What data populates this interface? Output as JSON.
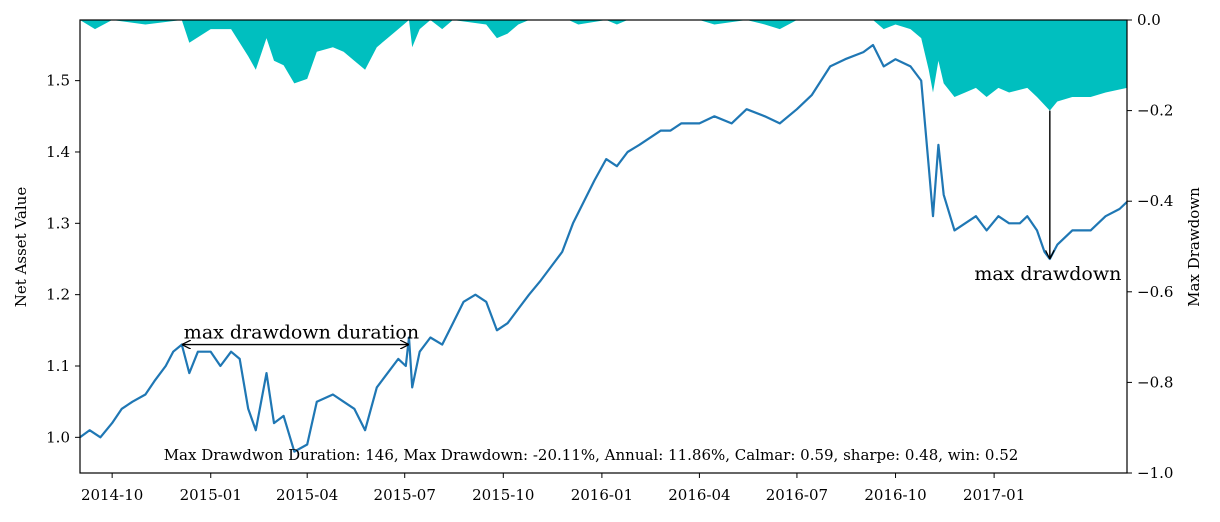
{
  "chart_data": {
    "type": "line",
    "ylabel_left": "Net Asset Value",
    "ylabel_right": "Max Drawdown",
    "ylim_left": [
      0.95,
      1.585
    ],
    "ylim_right": [
      -1.0,
      0.0
    ],
    "xlim": [
      "2014-09-01",
      "2017-05-05"
    ],
    "x_ticks": [
      "2014-10",
      "2015-01",
      "2015-04",
      "2015-07",
      "2015-10",
      "2016-01",
      "2016-04",
      "2016-07",
      "2016-10",
      "2017-01"
    ],
    "y_ticks_left": [
      "1.0",
      "1.1",
      "1.2",
      "1.3",
      "1.4",
      "1.5"
    ],
    "y_ticks_right": [
      "0.0",
      "−0.2",
      "−0.4",
      "−0.6",
      "−0.8",
      "−1.0"
    ],
    "grid": false,
    "series": [
      {
        "line_color": "#1f77b4",
        "points": [
          [
            "2014-09-01",
            1.0
          ],
          [
            "2014-09-10",
            1.01
          ],
          [
            "2014-09-20",
            1.0
          ],
          [
            "2014-10-01",
            1.02
          ],
          [
            "2014-10-10",
            1.04
          ],
          [
            "2014-10-20",
            1.05
          ],
          [
            "2014-11-01",
            1.06
          ],
          [
            "2014-11-10",
            1.08
          ],
          [
            "2014-11-20",
            1.1
          ],
          [
            "2014-11-27",
            1.12
          ],
          [
            "2014-12-05",
            1.13
          ],
          [
            "2014-12-12",
            1.09
          ],
          [
            "2014-12-20",
            1.12
          ],
          [
            "2015-01-01",
            1.12
          ],
          [
            "2015-01-10",
            1.1
          ],
          [
            "2015-01-20",
            1.12
          ],
          [
            "2015-01-28",
            1.11
          ],
          [
            "2015-02-05",
            1.04
          ],
          [
            "2015-02-12",
            1.01
          ],
          [
            "2015-02-22",
            1.09
          ],
          [
            "2015-03-01",
            1.02
          ],
          [
            "2015-03-10",
            1.03
          ],
          [
            "2015-03-20",
            0.98
          ],
          [
            "2015-04-01",
            0.99
          ],
          [
            "2015-04-10",
            1.05
          ],
          [
            "2015-04-25",
            1.06
          ],
          [
            "2015-05-05",
            1.05
          ],
          [
            "2015-05-15",
            1.04
          ],
          [
            "2015-05-25",
            1.01
          ],
          [
            "2015-06-05",
            1.07
          ],
          [
            "2015-06-15",
            1.09
          ],
          [
            "2015-06-25",
            1.11
          ],
          [
            "2015-07-02",
            1.1
          ],
          [
            "2015-07-05",
            1.14
          ],
          [
            "2015-07-08",
            1.07
          ],
          [
            "2015-07-15",
            1.12
          ],
          [
            "2015-07-25",
            1.14
          ],
          [
            "2015-08-05",
            1.13
          ],
          [
            "2015-08-15",
            1.16
          ],
          [
            "2015-08-25",
            1.19
          ],
          [
            "2015-09-05",
            1.2
          ],
          [
            "2015-09-15",
            1.19
          ],
          [
            "2015-09-25",
            1.15
          ],
          [
            "2015-10-05",
            1.16
          ],
          [
            "2015-10-15",
            1.18
          ],
          [
            "2015-10-25",
            1.2
          ],
          [
            "2015-11-05",
            1.22
          ],
          [
            "2015-11-15",
            1.24
          ],
          [
            "2015-11-25",
            1.26
          ],
          [
            "2015-12-05",
            1.3
          ],
          [
            "2015-12-15",
            1.33
          ],
          [
            "2015-12-25",
            1.36
          ],
          [
            "2016-01-05",
            1.39
          ],
          [
            "2016-01-15",
            1.38
          ],
          [
            "2016-01-25",
            1.4
          ],
          [
            "2016-02-05",
            1.41
          ],
          [
            "2016-02-15",
            1.42
          ],
          [
            "2016-02-25",
            1.43
          ],
          [
            "2016-03-05",
            1.43
          ],
          [
            "2016-03-15",
            1.44
          ],
          [
            "2016-04-01",
            1.44
          ],
          [
            "2016-04-15",
            1.45
          ],
          [
            "2016-05-01",
            1.44
          ],
          [
            "2016-05-15",
            1.46
          ],
          [
            "2016-06-01",
            1.45
          ],
          [
            "2016-06-15",
            1.44
          ],
          [
            "2016-07-01",
            1.46
          ],
          [
            "2016-07-15",
            1.48
          ],
          [
            "2016-08-01",
            1.52
          ],
          [
            "2016-08-15",
            1.53
          ],
          [
            "2016-09-01",
            1.54
          ],
          [
            "2016-09-10",
            1.55
          ],
          [
            "2016-09-20",
            1.52
          ],
          [
            "2016-10-01",
            1.53
          ],
          [
            "2016-10-15",
            1.52
          ],
          [
            "2016-10-25",
            1.5
          ],
          [
            "2016-11-01",
            1.38
          ],
          [
            "2016-11-05",
            1.31
          ],
          [
            "2016-11-10",
            1.41
          ],
          [
            "2016-11-15",
            1.34
          ],
          [
            "2016-11-25",
            1.29
          ],
          [
            "2016-12-05",
            1.3
          ],
          [
            "2016-12-15",
            1.31
          ],
          [
            "2016-12-25",
            1.29
          ],
          [
            "2017-01-05",
            1.31
          ],
          [
            "2017-01-15",
            1.3
          ],
          [
            "2017-01-25",
            1.3
          ],
          [
            "2017-02-01",
            1.31
          ],
          [
            "2017-02-10",
            1.29
          ],
          [
            "2017-02-17",
            1.26
          ],
          [
            "2017-02-22",
            1.25
          ],
          [
            "2017-03-01",
            1.27
          ],
          [
            "2017-03-15",
            1.29
          ],
          [
            "2017-04-01",
            1.29
          ],
          [
            "2017-04-15",
            1.31
          ],
          [
            "2017-04-28",
            1.32
          ],
          [
            "2017-05-05",
            1.33
          ]
        ]
      },
      {
        "fill_color": "#00bfbf",
        "points": [
          [
            "2014-09-01",
            0.0
          ],
          [
            "2014-09-15",
            -0.02
          ],
          [
            "2014-10-01",
            0.0
          ],
          [
            "2014-11-01",
            -0.01
          ],
          [
            "2014-12-05",
            0.0
          ],
          [
            "2014-12-12",
            -0.05
          ],
          [
            "2015-01-01",
            -0.02
          ],
          [
            "2015-01-20",
            -0.02
          ],
          [
            "2015-02-05",
            -0.08
          ],
          [
            "2015-02-12",
            -0.11
          ],
          [
            "2015-02-22",
            -0.04
          ],
          [
            "2015-03-01",
            -0.09
          ],
          [
            "2015-03-10",
            -0.1
          ],
          [
            "2015-03-20",
            -0.14
          ],
          [
            "2015-04-01",
            -0.13
          ],
          [
            "2015-04-10",
            -0.07
          ],
          [
            "2015-04-25",
            -0.06
          ],
          [
            "2015-05-05",
            -0.07
          ],
          [
            "2015-05-15",
            -0.09
          ],
          [
            "2015-05-25",
            -0.11
          ],
          [
            "2015-06-05",
            -0.06
          ],
          [
            "2015-06-15",
            -0.04
          ],
          [
            "2015-06-25",
            -0.02
          ],
          [
            "2015-07-05",
            0.0
          ],
          [
            "2015-07-08",
            -0.06
          ],
          [
            "2015-07-15",
            -0.02
          ],
          [
            "2015-07-25",
            0.0
          ],
          [
            "2015-08-05",
            -0.02
          ],
          [
            "2015-08-15",
            0.0
          ],
          [
            "2015-09-15",
            -0.01
          ],
          [
            "2015-09-25",
            -0.04
          ],
          [
            "2015-10-05",
            -0.03
          ],
          [
            "2015-10-15",
            -0.01
          ],
          [
            "2015-10-25",
            0.0
          ],
          [
            "2015-12-01",
            0.0
          ],
          [
            "2015-12-10",
            -0.01
          ],
          [
            "2016-01-05",
            0.0
          ],
          [
            "2016-01-15",
            -0.01
          ],
          [
            "2016-01-25",
            0.0
          ],
          [
            "2016-04-01",
            0.0
          ],
          [
            "2016-04-15",
            -0.01
          ],
          [
            "2016-05-15",
            0.0
          ],
          [
            "2016-06-01",
            -0.01
          ],
          [
            "2016-06-15",
            -0.02
          ],
          [
            "2016-07-01",
            0.0
          ],
          [
            "2016-09-10",
            0.0
          ],
          [
            "2016-09-20",
            -0.02
          ],
          [
            "2016-10-01",
            -0.01
          ],
          [
            "2016-10-15",
            -0.02
          ],
          [
            "2016-10-25",
            -0.04
          ],
          [
            "2016-11-01",
            -0.11
          ],
          [
            "2016-11-05",
            -0.16
          ],
          [
            "2016-11-10",
            -0.09
          ],
          [
            "2016-11-15",
            -0.14
          ],
          [
            "2016-11-25",
            -0.17
          ],
          [
            "2016-12-05",
            -0.16
          ],
          [
            "2016-12-15",
            -0.15
          ],
          [
            "2016-12-25",
            -0.17
          ],
          [
            "2017-01-05",
            -0.15
          ],
          [
            "2017-01-15",
            -0.16
          ],
          [
            "2017-02-01",
            -0.15
          ],
          [
            "2017-02-10",
            -0.17
          ],
          [
            "2017-02-22",
            -0.2
          ],
          [
            "2017-03-01",
            -0.18
          ],
          [
            "2017-03-15",
            -0.17
          ],
          [
            "2017-04-01",
            -0.17
          ],
          [
            "2017-04-15",
            -0.16
          ],
          [
            "2017-05-05",
            -0.15
          ]
        ]
      }
    ],
    "annotations": {
      "duration_label": "max drawdown duration",
      "duration_span": [
        "2014-12-05",
        "2015-07-05"
      ],
      "duration_y": 1.13,
      "drawdown_label": "max drawdown",
      "drawdown_date": "2017-02-22",
      "drawdown_arrow_from": -0.2,
      "drawdown_arrow_to": 1.25,
      "stats_text": "Max Drawdwon Duration: 146, Max Drawdown: -20.11%, Annual: 11.86%, Calmar: 0.59, sharpe: 0.48, win: 0.52"
    }
  }
}
